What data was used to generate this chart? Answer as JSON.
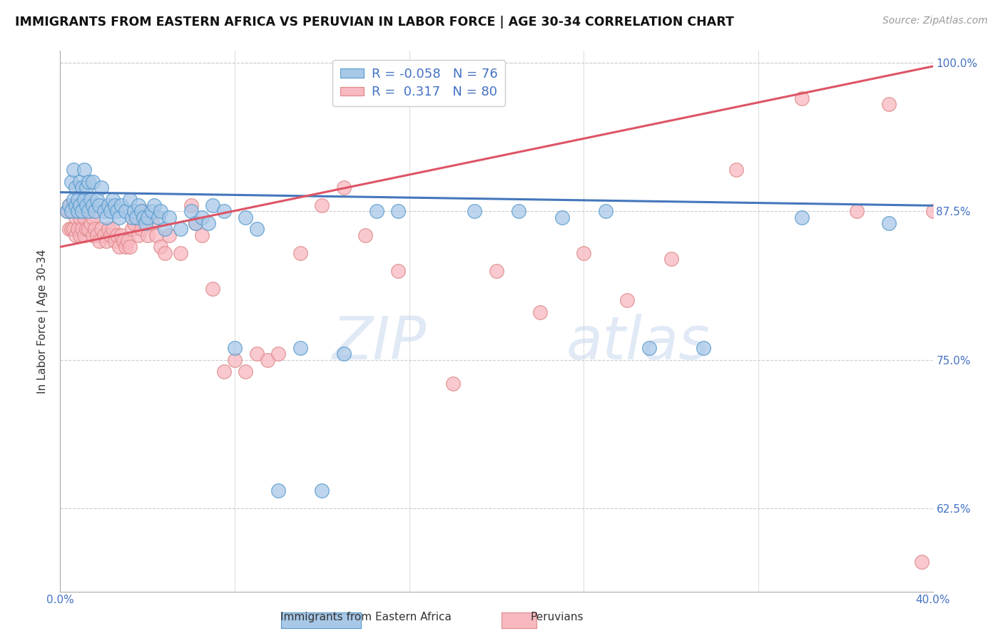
{
  "title": "IMMIGRANTS FROM EASTERN AFRICA VS PERUVIAN IN LABOR FORCE | AGE 30-34 CORRELATION CHART",
  "source": "Source: ZipAtlas.com",
  "ylabel": "In Labor Force | Age 30-34",
  "xlim": [
    0.0,
    0.4
  ],
  "ylim": [
    0.555,
    1.01
  ],
  "yticks": [
    0.625,
    0.75,
    0.875,
    1.0
  ],
  "ytick_labels": [
    "62.5%",
    "75.0%",
    "87.5%",
    "100.0%"
  ],
  "xticks": [
    0.0,
    0.08,
    0.16,
    0.24,
    0.32,
    0.4
  ],
  "xtick_labels": [
    "0.0%",
    "",
    "",
    "",
    "",
    "40.0%"
  ],
  "blue_R": -0.058,
  "blue_N": 76,
  "pink_R": 0.317,
  "pink_N": 80,
  "blue_color": "#a8c8e8",
  "blue_edge_color": "#5599cc",
  "pink_color": "#f8b8c0",
  "pink_edge_color": "#dd8888",
  "blue_line_color": "#4477bb",
  "pink_line_color": "#dd5566",
  "title_fontsize": 12.5,
  "source_fontsize": 10,
  "axis_label_fontsize": 11,
  "tick_fontsize": 11,
  "legend_fontsize": 13,
  "background_color": "#ffffff",
  "grid_color": "#cccccc",
  "tick_color": "#4472c4",
  "blue_slope": -0.028,
  "blue_intercept": 0.891,
  "pink_slope": 0.38,
  "pink_intercept": 0.845,
  "blue_x": [
    0.003,
    0.004,
    0.005,
    0.005,
    0.006,
    0.006,
    0.007,
    0.007,
    0.008,
    0.008,
    0.009,
    0.009,
    0.01,
    0.01,
    0.011,
    0.011,
    0.012,
    0.012,
    0.013,
    0.013,
    0.014,
    0.015,
    0.015,
    0.016,
    0.017,
    0.018,
    0.019,
    0.02,
    0.021,
    0.022,
    0.023,
    0.024,
    0.025,
    0.026,
    0.027,
    0.028,
    0.03,
    0.032,
    0.033,
    0.034,
    0.035,
    0.036,
    0.037,
    0.038,
    0.039,
    0.04,
    0.042,
    0.043,
    0.045,
    0.046,
    0.048,
    0.05,
    0.055,
    0.06,
    0.062,
    0.065,
    0.068,
    0.07,
    0.075,
    0.08,
    0.085,
    0.09,
    0.1,
    0.11,
    0.12,
    0.13,
    0.145,
    0.155,
    0.19,
    0.21,
    0.23,
    0.25,
    0.27,
    0.295,
    0.34,
    0.38
  ],
  "blue_y": [
    0.875,
    0.88,
    0.875,
    0.9,
    0.885,
    0.91,
    0.88,
    0.895,
    0.875,
    0.885,
    0.88,
    0.9,
    0.875,
    0.895,
    0.885,
    0.91,
    0.88,
    0.895,
    0.875,
    0.9,
    0.885,
    0.88,
    0.9,
    0.875,
    0.885,
    0.88,
    0.895,
    0.875,
    0.87,
    0.88,
    0.875,
    0.885,
    0.88,
    0.875,
    0.87,
    0.88,
    0.875,
    0.885,
    0.87,
    0.875,
    0.87,
    0.88,
    0.875,
    0.87,
    0.865,
    0.87,
    0.875,
    0.88,
    0.87,
    0.875,
    0.86,
    0.87,
    0.86,
    0.875,
    0.865,
    0.87,
    0.865,
    0.88,
    0.875,
    0.76,
    0.87,
    0.86,
    0.64,
    0.76,
    0.64,
    0.755,
    0.875,
    0.875,
    0.875,
    0.875,
    0.87,
    0.875,
    0.76,
    0.76,
    0.87,
    0.865
  ],
  "pink_x": [
    0.003,
    0.004,
    0.004,
    0.005,
    0.005,
    0.006,
    0.006,
    0.007,
    0.007,
    0.008,
    0.008,
    0.009,
    0.009,
    0.01,
    0.01,
    0.011,
    0.011,
    0.012,
    0.012,
    0.013,
    0.014,
    0.015,
    0.015,
    0.016,
    0.017,
    0.018,
    0.019,
    0.02,
    0.021,
    0.022,
    0.023,
    0.024,
    0.025,
    0.026,
    0.027,
    0.028,
    0.029,
    0.03,
    0.031,
    0.032,
    0.033,
    0.034,
    0.035,
    0.036,
    0.037,
    0.038,
    0.04,
    0.042,
    0.044,
    0.046,
    0.048,
    0.05,
    0.055,
    0.06,
    0.062,
    0.065,
    0.07,
    0.075,
    0.08,
    0.085,
    0.09,
    0.095,
    0.1,
    0.11,
    0.12,
    0.13,
    0.14,
    0.155,
    0.18,
    0.2,
    0.22,
    0.24,
    0.26,
    0.28,
    0.31,
    0.34,
    0.365,
    0.38,
    0.395,
    0.4
  ],
  "pink_y": [
    0.875,
    0.86,
    0.88,
    0.86,
    0.875,
    0.86,
    0.88,
    0.855,
    0.87,
    0.86,
    0.875,
    0.855,
    0.87,
    0.86,
    0.875,
    0.855,
    0.87,
    0.86,
    0.875,
    0.86,
    0.865,
    0.855,
    0.87,
    0.86,
    0.855,
    0.85,
    0.86,
    0.855,
    0.85,
    0.86,
    0.855,
    0.86,
    0.85,
    0.855,
    0.845,
    0.855,
    0.85,
    0.845,
    0.85,
    0.845,
    0.86,
    0.865,
    0.87,
    0.855,
    0.86,
    0.875,
    0.855,
    0.865,
    0.855,
    0.845,
    0.84,
    0.855,
    0.84,
    0.88,
    0.865,
    0.855,
    0.81,
    0.74,
    0.75,
    0.74,
    0.755,
    0.75,
    0.755,
    0.84,
    0.88,
    0.895,
    0.855,
    0.825,
    0.73,
    0.825,
    0.79,
    0.84,
    0.8,
    0.835,
    0.91,
    0.97,
    0.875,
    0.965,
    0.58,
    0.875
  ]
}
